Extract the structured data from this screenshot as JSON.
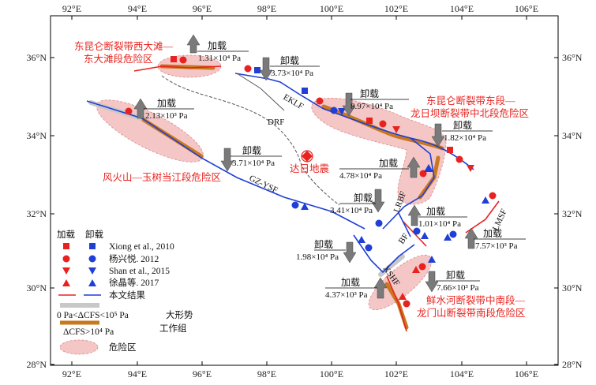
{
  "axes": {
    "lon_ticks": [
      "92°E",
      "94°E",
      "96°E",
      "98°E",
      "100°E",
      "102°E",
      "104°E",
      "106°E"
    ],
    "lat_ticks": [
      "36°N",
      "34°N",
      "32°N",
      "30°N",
      "28°N"
    ]
  },
  "colors": {
    "loading_line": "#e8231f",
    "unloading_line": "#1f3fd6",
    "large_trend": "#c8c8c8",
    "working_group": "#c8781e",
    "danger_zone": "#f4c6c6",
    "arrow": "#7a7a7a",
    "zone_text": "#e8231f"
  },
  "danger_zones": [
    {
      "name": "东昆仑断裂带西大滩—东大滩段危险区",
      "label_lines": [
        "东昆仑断裂带西大滩—",
        "东大滩段危险区"
      ]
    },
    {
      "name": "东昆仑断裂带东段—龙日坝断裂带中北段危险区",
      "label_lines": [
        "东昆仑断裂带东段—",
        "龙日坝断裂带中北段危险区"
      ]
    },
    {
      "name": "风火山—玉树当江段危险区",
      "label_lines": [
        "风火山—玉树当江段危险区"
      ]
    },
    {
      "name": "鲜水河断裂带中南段—龙门山断裂带南段危险区",
      "label_lines": [
        "鲜水河断裂带中南段—",
        "龙门山断裂带南段危险区"
      ]
    }
  ],
  "faults": [
    "EKLF",
    "DRF",
    "GZ-YSF",
    "LRBF",
    "BF",
    "LMSF",
    "XSHF"
  ],
  "epicenter": {
    "label": "达日地震"
  },
  "stress_arrows": [
    {
      "id": "a1",
      "kind": "加载",
      "value": "1.31×10⁴ Pa"
    },
    {
      "id": "a2",
      "kind": "卸载",
      "value": "3.73×10⁴ Pa"
    },
    {
      "id": "a3",
      "kind": "加载",
      "value": "2.13×10³ Pa"
    },
    {
      "id": "a4",
      "kind": "卸载",
      "value": "8.97×10⁴ Pa"
    },
    {
      "id": "a5",
      "kind": "卸载",
      "value": "1.82×10⁴ Pa"
    },
    {
      "id": "a6",
      "kind": "卸载",
      "value": "3.71×10⁴ Pa"
    },
    {
      "id": "a7",
      "kind": "加载",
      "value": "4.78×10⁴ Pa"
    },
    {
      "id": "a8",
      "kind": "卸载",
      "value": "3.41×10⁴ Pa"
    },
    {
      "id": "a9",
      "kind": "加载",
      "value": "1.01×10⁴ Pa"
    },
    {
      "id": "a10",
      "kind": "加载",
      "value": "7.57×10³ Pa"
    },
    {
      "id": "a11",
      "kind": "卸载",
      "value": "1.98×10⁴ Pa"
    },
    {
      "id": "a12",
      "kind": "卸载",
      "value": "7.66×10³ Pa"
    },
    {
      "id": "a13",
      "kind": "加载",
      "value": "4.37×10³ Pa"
    }
  ],
  "legend": {
    "col_load": "加载",
    "col_unload": "卸载",
    "sources": [
      "Xiong et al., 2010",
      "杨兴悦. 2012",
      "Shan et al., 2015",
      "徐晶等. 2017"
    ],
    "this_study": "本文结果",
    "trend_range": "0 Pa<ΔCFS<10⁵ Pa",
    "trend_label": "大形势",
    "wg_range": "ΔCFS>10⁴ Pa",
    "wg_label": "工作组",
    "zone_label": "危险区"
  }
}
